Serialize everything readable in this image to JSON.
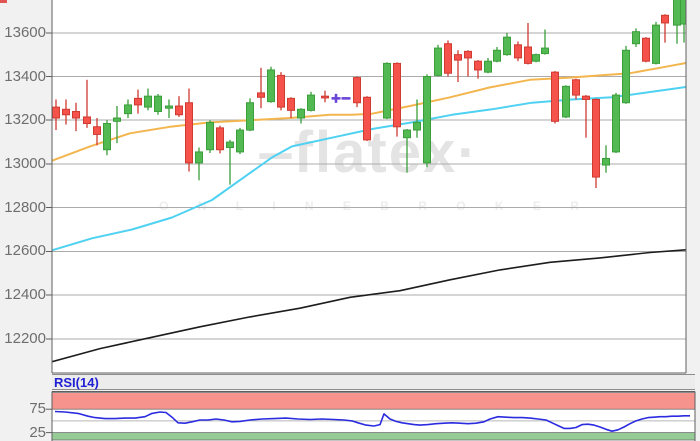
{
  "watermark": {
    "prefix": "‒",
    "brand": "flatex",
    "suffix": "·",
    "subtitle": "O N L I N E   B R O K E R"
  },
  "rsi_panel_title": "RSI(14)",
  "colors": {
    "up_fill": "#53b953",
    "up_stroke": "#3a9e3a",
    "down_fill": "#f4524a",
    "down_stroke": "#cf3a31",
    "ema_fast": "#f3b64f",
    "ema_mid": "#4fd1f2",
    "sma_slow": "#1d1d1d",
    "rsi_line": "#2b2be0",
    "rsi_label": "#1f1fd4",
    "overbought_band": "#f5938c",
    "oversold_band": "#95cc95",
    "band_edge": "#6f6f6f",
    "grid": "#ababab",
    "axis": "#5f5f5f",
    "tick_text": "#6e6e6e",
    "midline": "#b8b8b8",
    "marker": "#6a46d8",
    "corner_mark": "#e25555",
    "panel_bg": "#ffffff",
    "page_bg": "#f1f1f1",
    "strip_bg": "#ececec",
    "watermark": "#e4e4e4",
    "watermark_sub": "#ededed"
  },
  "chart_data": {
    "type": "candlestick",
    "title": "flatex price chart with RSI(14) sub-panel",
    "price_panel": {
      "y_ticks": [
        13600,
        13400,
        13200,
        13000,
        12800,
        12600,
        12400,
        12200
      ],
      "y_visible_range": [
        12045,
        13750
      ],
      "grid": true,
      "candles_ohlc_by_x": [
        [
          56,
          13260,
          13295,
          13155,
          13210
        ],
        [
          66,
          13250,
          13295,
          13180,
          13225
        ],
        [
          76,
          13240,
          13280,
          13150,
          13210
        ],
        [
          87,
          13215,
          13385,
          13165,
          13185
        ],
        [
          97,
          13170,
          13210,
          13085,
          13135
        ],
        [
          107,
          13065,
          13200,
          13040,
          13185
        ],
        [
          117,
          13195,
          13265,
          13095,
          13210
        ],
        [
          128,
          13230,
          13295,
          13210,
          13270
        ],
        [
          138,
          13300,
          13340,
          13230,
          13270
        ],
        [
          148,
          13260,
          13345,
          13245,
          13310
        ],
        [
          158,
          13240,
          13320,
          13225,
          13310
        ],
        [
          169,
          13255,
          13295,
          13210,
          13265
        ],
        [
          179,
          13265,
          13310,
          13215,
          13225
        ],
        [
          189,
          13280,
          13345,
          12965,
          13005
        ],
        [
          199,
          13005,
          13075,
          12925,
          13055
        ],
        [
          210,
          13065,
          13200,
          13050,
          13190
        ],
        [
          220,
          13165,
          13175,
          13048,
          13065
        ],
        [
          230,
          13075,
          13110,
          12905,
          13100
        ],
        [
          240,
          13055,
          13165,
          13045,
          13155
        ],
        [
          250,
          13155,
          13300,
          13150,
          13280
        ],
        [
          261,
          13325,
          13440,
          13255,
          13305
        ],
        [
          271,
          13285,
          13445,
          13280,
          13430
        ],
        [
          281,
          13405,
          13420,
          13245,
          13260
        ],
        [
          291,
          13300,
          13305,
          13210,
          13245
        ],
        [
          301,
          13210,
          13255,
          13185,
          13250
        ],
        [
          311,
          13245,
          13330,
          13240,
          13315
        ],
        [
          325,
          13310,
          13335,
          13282,
          13302
        ],
        [
          357,
          13395,
          13400,
          13260,
          13280
        ],
        [
          367,
          13305,
          13310,
          13105,
          13110
        ],
        [
          387,
          13210,
          13465,
          13205,
          13460
        ],
        [
          397,
          13460,
          13465,
          13125,
          13170
        ],
        [
          407,
          13120,
          13160,
          12960,
          13155
        ],
        [
          417,
          13155,
          13295,
          13120,
          13190
        ],
        [
          427,
          13005,
          13410,
          12985,
          13400
        ],
        [
          438,
          13405,
          13545,
          13400,
          13530
        ],
        [
          448,
          13550,
          13565,
          13400,
          13415
        ],
        [
          458,
          13500,
          13520,
          13375,
          13475
        ],
        [
          468,
          13515,
          13520,
          13400,
          13485
        ],
        [
          478,
          13470,
          13475,
          13390,
          13430
        ],
        [
          488,
          13420,
          13485,
          13415,
          13470
        ],
        [
          497,
          13470,
          13535,
          13465,
          13520
        ],
        [
          507,
          13500,
          13600,
          13495,
          13580
        ],
        [
          518,
          13545,
          13560,
          13470,
          13485
        ],
        [
          528,
          13535,
          13645,
          13455,
          13460
        ],
        [
          536,
          13470,
          13505,
          13465,
          13500
        ],
        [
          545,
          13505,
          13615,
          13500,
          13530
        ],
        [
          555,
          13420,
          13425,
          13185,
          13195
        ],
        [
          566,
          13215,
          13360,
          13210,
          13355
        ],
        [
          576,
          13385,
          13390,
          13295,
          13315
        ],
        [
          586,
          13310,
          13315,
          13120,
          13295
        ],
        [
          596,
          13295,
          13300,
          12890,
          12940
        ],
        [
          606,
          12995,
          13085,
          12960,
          13025
        ],
        [
          616,
          13055,
          13325,
          13050,
          13315
        ],
        [
          626,
          13280,
          13540,
          13275,
          13520
        ],
        [
          636,
          13550,
          13620,
          13535,
          13605
        ],
        [
          646,
          13575,
          13580,
          13465,
          13470
        ],
        [
          656,
          13460,
          13650,
          13455,
          13635
        ],
        [
          665,
          13680,
          13685,
          13555,
          13645
        ],
        [
          677,
          13635,
          13780,
          13550,
          13775
        ],
        [
          684,
          13640,
          13775,
          13555,
          13770
        ]
      ],
      "markers": [
        {
          "type": "plus",
          "x": 336,
          "price": 13300
        },
        {
          "type": "dash",
          "x": 346,
          "price": 13300
        }
      ],
      "moving_averages": [
        {
          "name": "fast-ma-orange",
          "points_x_price": [
            [
              52,
              13015
            ],
            [
              90,
              13080
            ],
            [
              130,
              13140
            ],
            [
              170,
              13170
            ],
            [
              210,
              13190
            ],
            [
              250,
              13200
            ],
            [
              290,
              13210
            ],
            [
              330,
              13225
            ],
            [
              352,
              13225
            ],
            [
              372,
              13230
            ],
            [
              410,
              13265
            ],
            [
              450,
              13305
            ],
            [
              490,
              13350
            ],
            [
              530,
              13385
            ],
            [
              570,
              13395
            ],
            [
              600,
              13405
            ],
            [
              630,
              13415
            ],
            [
              660,
              13440
            ],
            [
              686,
              13462
            ]
          ]
        },
        {
          "name": "mid-ma-cyan",
          "points_x_price": [
            [
              52,
              12605
            ],
            [
              92,
              12660
            ],
            [
              132,
              12700
            ],
            [
              172,
              12755
            ],
            [
              212,
              12835
            ],
            [
              252,
              12965
            ],
            [
              272,
              13030
            ],
            [
              292,
              13080
            ],
            [
              332,
              13120
            ],
            [
              372,
              13160
            ],
            [
              412,
              13190
            ],
            [
              452,
              13225
            ],
            [
              492,
              13250
            ],
            [
              532,
              13280
            ],
            [
              572,
              13295
            ],
            [
              612,
              13305
            ],
            [
              652,
              13330
            ],
            [
              686,
              13352
            ]
          ]
        },
        {
          "name": "slow-ma-black",
          "points_x_price": [
            [
              52,
              12095
            ],
            [
              100,
              12155
            ],
            [
              150,
              12205
            ],
            [
              200,
              12255
            ],
            [
              250,
              12300
            ],
            [
              300,
              12340
            ],
            [
              350,
              12390
            ],
            [
              400,
              12420
            ],
            [
              450,
              12470
            ],
            [
              500,
              12515
            ],
            [
              550,
              12550
            ],
            [
              600,
              12570
            ],
            [
              650,
              12595
            ],
            [
              686,
              12607
            ]
          ]
        }
      ]
    },
    "rsi_panel": {
      "label": "RSI(14)",
      "y_ticks": [
        75,
        25
      ],
      "overbought_level": 75,
      "oversold_level": 25,
      "midline_level": 50,
      "values_by_x": [
        [
          55,
          70
        ],
        [
          65,
          69
        ],
        [
          78,
          66
        ],
        [
          88,
          60
        ],
        [
          95,
          57
        ],
        [
          105,
          55
        ],
        [
          115,
          55
        ],
        [
          125,
          56
        ],
        [
          135,
          56
        ],
        [
          145,
          59
        ],
        [
          152,
          66
        ],
        [
          160,
          69
        ],
        [
          166,
          68
        ],
        [
          172,
          58
        ],
        [
          178,
          46
        ],
        [
          185,
          45
        ],
        [
          192,
          48
        ],
        [
          200,
          52
        ],
        [
          208,
          52
        ],
        [
          216,
          54
        ],
        [
          224,
          52
        ],
        [
          232,
          48
        ],
        [
          240,
          49
        ],
        [
          250,
          52
        ],
        [
          262,
          54
        ],
        [
          274,
          55
        ],
        [
          286,
          56
        ],
        [
          298,
          54
        ],
        [
          310,
          53
        ],
        [
          322,
          54
        ],
        [
          334,
          53
        ],
        [
          344,
          52
        ],
        [
          352,
          50
        ],
        [
          358,
          46
        ],
        [
          366,
          41
        ],
        [
          374,
          39
        ],
        [
          380,
          42
        ],
        [
          384,
          65
        ],
        [
          390,
          54
        ],
        [
          396,
          49
        ],
        [
          402,
          46
        ],
        [
          408,
          44
        ],
        [
          414,
          42
        ],
        [
          420,
          41
        ],
        [
          428,
          42
        ],
        [
          436,
          44
        ],
        [
          444,
          45
        ],
        [
          452,
          46
        ],
        [
          460,
          45
        ],
        [
          468,
          44
        ],
        [
          476,
          45
        ],
        [
          484,
          48
        ],
        [
          490,
          54
        ],
        [
          498,
          59
        ],
        [
          506,
          58
        ],
        [
          514,
          57
        ],
        [
          522,
          57
        ],
        [
          530,
          56
        ],
        [
          538,
          54
        ],
        [
          546,
          52
        ],
        [
          552,
          46
        ],
        [
          558,
          40
        ],
        [
          564,
          34
        ],
        [
          570,
          34
        ],
        [
          576,
          36
        ],
        [
          582,
          42
        ],
        [
          588,
          43
        ],
        [
          594,
          41
        ],
        [
          600,
          37
        ],
        [
          606,
          32
        ],
        [
          612,
          28
        ],
        [
          618,
          31
        ],
        [
          624,
          37
        ],
        [
          630,
          44
        ],
        [
          636,
          50
        ],
        [
          642,
          54
        ],
        [
          648,
          57
        ],
        [
          654,
          58
        ],
        [
          660,
          59
        ],
        [
          666,
          59
        ],
        [
          672,
          60
        ],
        [
          678,
          60
        ],
        [
          684,
          61
        ],
        [
          690,
          61
        ]
      ]
    }
  }
}
